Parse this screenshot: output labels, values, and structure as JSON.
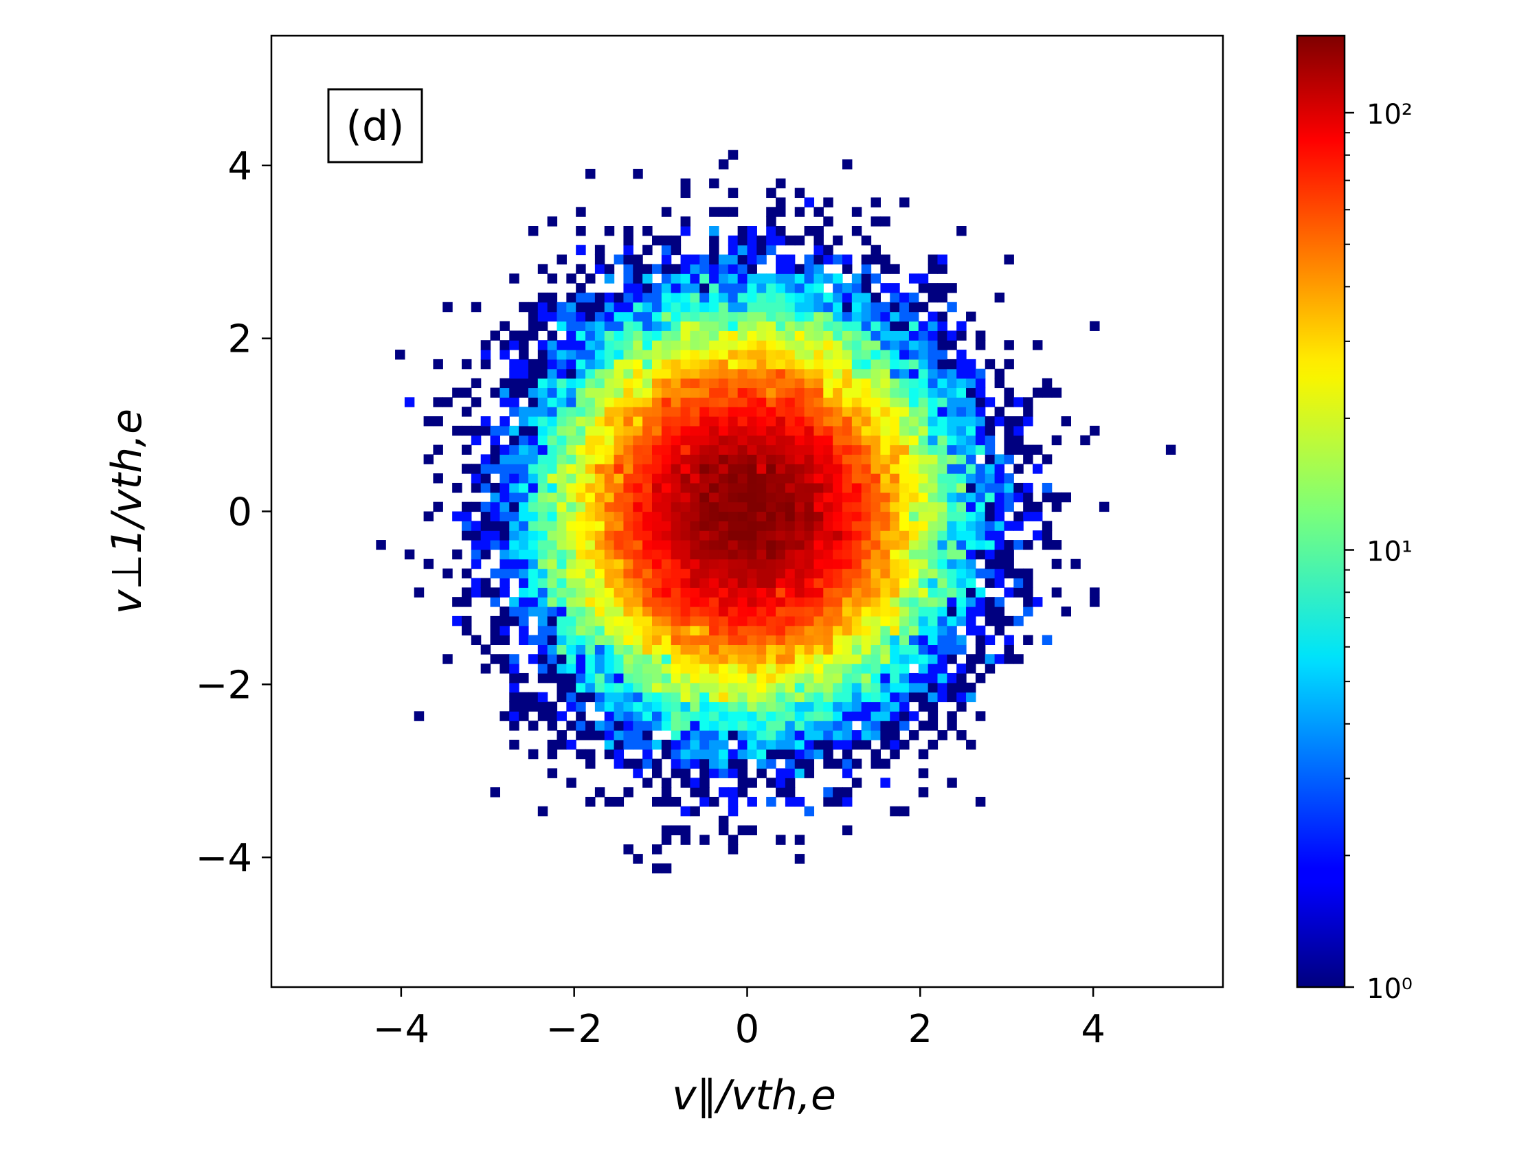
{
  "chart_data": {
    "type": "heatmap",
    "title": "",
    "panel_label": "(d)",
    "xlabel": "v∥/vth,e",
    "ylabel": "v⊥1/vth,e",
    "xlim": [
      -5.5,
      5.5
    ],
    "ylim": [
      -5.5,
      5.5
    ],
    "x_ticks": [
      -4,
      -2,
      0,
      2,
      4
    ],
    "y_ticks": [
      -4,
      -2,
      0,
      2,
      4
    ],
    "x_tick_labels": [
      "−4",
      "−2",
      "0",
      "2",
      "4"
    ],
    "y_tick_labels": [
      "−4",
      "−2",
      "0",
      "2",
      "4"
    ],
    "grid": false,
    "colormap": "jet",
    "colorbar": {
      "scale": "log",
      "range": [
        1,
        150
      ],
      "ticks": [
        1,
        10,
        100
      ],
      "tick_labels": [
        "10⁰",
        "10¹",
        "10²"
      ]
    },
    "distribution": {
      "shape": "2D Gaussian",
      "center": [
        0.0,
        0.0
      ],
      "sigma_x": 1.0,
      "sigma_y": 1.0,
      "peak_count": 150,
      "bin_width": 0.11
    }
  }
}
